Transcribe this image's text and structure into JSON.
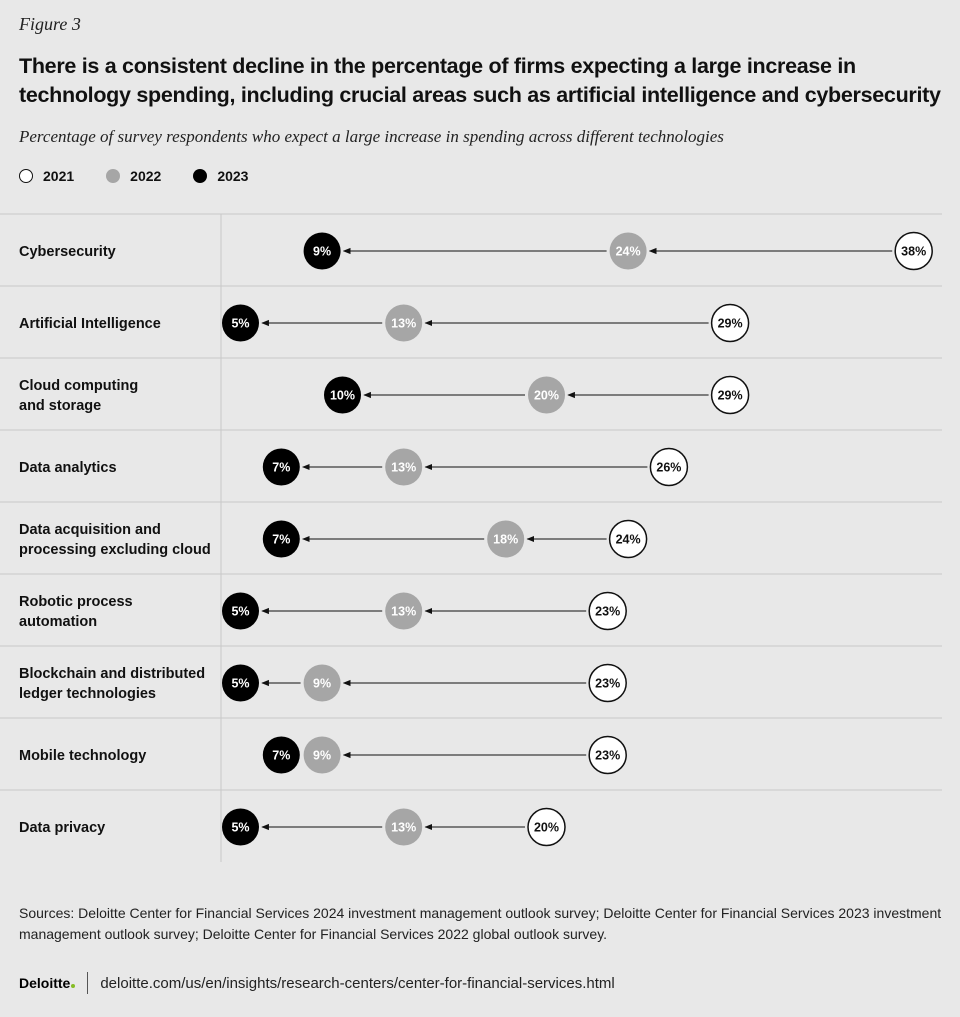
{
  "figure_label": "Figure 3",
  "title": "There is a consistent decline in the percentage of firms expecting a large increase in technology spending, including crucial areas such as artificial intelligence and cybersecurity",
  "subtitle": "Percentage of survey respondents who expect a large increase in spending across different technologies",
  "colors": {
    "y2021": "#ffffff",
    "y2022": "#a6a6a6",
    "y2023": "#000000",
    "background": "#e8e8e8",
    "brand_green": "#86bc25"
  },
  "chart_data": {
    "type": "dot-arrow",
    "title": "There is a consistent decline in the percentage of firms expecting a large increase in technology spending, including crucial areas such as artificial intelligence and cybersecurity",
    "subtitle": "Percentage of survey respondents who expect a large increase in spending across different technologies",
    "unit": "%",
    "legend": [
      "2021",
      "2022",
      "2023"
    ],
    "legend_position": "top-left",
    "categories": [
      [
        "Cybersecurity"
      ],
      [
        "Artificial Intelligence"
      ],
      [
        "Cloud computing",
        "and storage"
      ],
      [
        "Data analytics"
      ],
      [
        "Data acquisition and",
        "processing excluding cloud"
      ],
      [
        "Robotic process",
        "automation"
      ],
      [
        "Blockchain and distributed",
        "ledger technologies"
      ],
      [
        "Mobile technology"
      ],
      [
        "Data privacy"
      ]
    ],
    "series": [
      {
        "name": "2021",
        "values": [
          38,
          29,
          29,
          26,
          24,
          23,
          23,
          23,
          20
        ]
      },
      {
        "name": "2022",
        "values": [
          24,
          13,
          20,
          13,
          18,
          13,
          9,
          9,
          13
        ]
      },
      {
        "name": "2023",
        "values": [
          9,
          5,
          10,
          7,
          7,
          5,
          5,
          7,
          5
        ]
      }
    ]
  },
  "sources": "Sources: Deloitte Center for Financial Services 2024 investment management outlook survey; Deloitte Center for Financial Services 2023 investment management outlook survey; Deloitte Center for Financial Services 2022 global outlook survey.",
  "footer": {
    "logo": "Deloitte",
    "url": "deloitte.com/us/en/insights/research-centers/center-for-financial-services.html"
  }
}
